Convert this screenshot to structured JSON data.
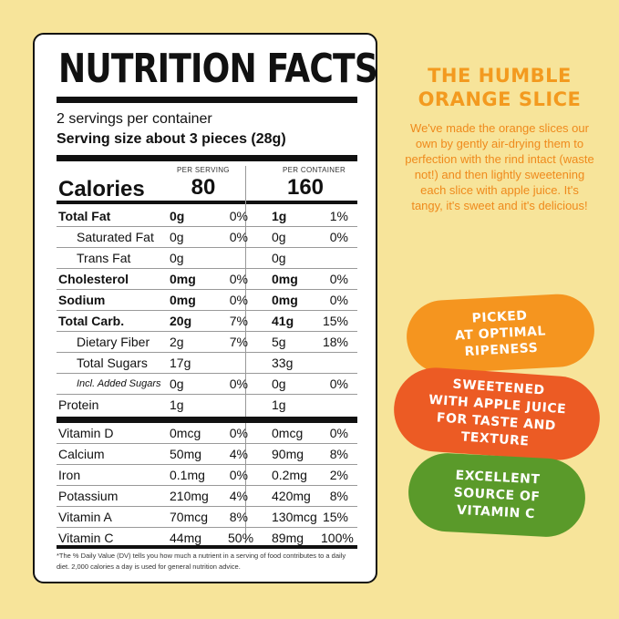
{
  "label": {
    "title": "NUTRITION FACTS",
    "servings_per_container": "2 servings per container",
    "serving_size": "Serving size about 3 pieces (28g)",
    "per_serving_header": "PER SERVING",
    "per_container_header": "PER CONTAINER",
    "calories_label": "Calories",
    "calories_serving": "80",
    "calories_container": "160",
    "nutrients": [
      {
        "name": "Total Fat",
        "sa": "0g",
        "sp": "0%",
        "ca": "1g",
        "cp": "1%"
      },
      {
        "name": "Saturated Fat",
        "sa": "0g",
        "sp": "0%",
        "ca": "0g",
        "cp": "0%"
      },
      {
        "name": "Trans Fat",
        "sa": "0g",
        "sp": "",
        "ca": "0g",
        "cp": ""
      },
      {
        "name": "Cholesterol",
        "sa": "0mg",
        "sp": "0%",
        "ca": "0mg",
        "cp": "0%"
      },
      {
        "name": "Sodium",
        "sa": "0mg",
        "sp": "0%",
        "ca": "0mg",
        "cp": "0%"
      },
      {
        "name": "Total Carb.",
        "sa": "20g",
        "sp": "7%",
        "ca": "41g",
        "cp": "15%"
      },
      {
        "name": "Dietary Fiber",
        "sa": "2g",
        "sp": "7%",
        "ca": "5g",
        "cp": "18%"
      },
      {
        "name": "Total Sugars",
        "sa": "17g",
        "sp": "",
        "ca": "33g",
        "cp": ""
      },
      {
        "name": "Incl. Added Sugars",
        "sa": "0g",
        "sp": "0%",
        "ca": "0g",
        "cp": "0%"
      },
      {
        "name": "Protein",
        "sa": "1g",
        "sp": "",
        "ca": "1g",
        "cp": ""
      }
    ],
    "vitamins": [
      {
        "name": "Vitamin D",
        "sa": "0mcg",
        "sp": "0%",
        "ca": "0mcg",
        "cp": "0%"
      },
      {
        "name": "Calcium",
        "sa": "50mg",
        "sp": "4%",
        "ca": "90mg",
        "cp": "8%"
      },
      {
        "name": "Iron",
        "sa": "0.1mg",
        "sp": "0%",
        "ca": "0.2mg",
        "cp": "2%"
      },
      {
        "name": "Potassium",
        "sa": "210mg",
        "sp": "4%",
        "ca": "420mg",
        "cp": "8%"
      },
      {
        "name": "Vitamin A",
        "sa": "70mcg",
        "sp": "8%",
        "ca": "130mcg",
        "cp": "15%"
      },
      {
        "name": "Vitamin C",
        "sa": "44mg",
        "sp": "50%",
        "ca": "89mg",
        "cp": "100%"
      }
    ],
    "footnote": "*The % Daily Value (DV) tells you how much a nutrient in a serving of food contributes to a daily diet. 2,000 calories a day is used for general nutrition advice."
  },
  "side": {
    "title": "THE HUMBLE ORANGE SLICE",
    "description": "We've made the orange slices our own by gently air-drying them to perfection with the rind intact (waste not!) and then lightly sweetening each slice with apple juice. It's tangy, it's sweet and it's delicious!",
    "badges": [
      {
        "text": "PICKED\nAT OPTIMAL\nRIPENESS",
        "color": "#f5951f"
      },
      {
        "text": "SWEETENED\nWITH APPLE JUICE\nFOR TASTE AND\nTEXTURE",
        "color": "#ec5b24"
      },
      {
        "text": "EXCELLENT\nSOURCE OF\nVITAMIN C",
        "color": "#5a9a2a"
      }
    ]
  },
  "colors": {
    "background": "#f7e49a",
    "accent_orange": "#f39a1f"
  }
}
